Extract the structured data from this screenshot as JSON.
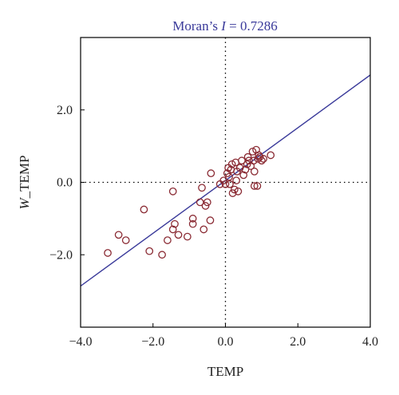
{
  "chart_data": {
    "type": "scatter",
    "title_prefix": "Moran’s ",
    "title_stat": "I",
    "title_suffix": " = 0.7286",
    "xlabel": "TEMP",
    "ylabel_prefix": "W",
    "ylabel_suffix": "_TEMP",
    "xlim": [
      -4.0,
      4.0
    ],
    "ylim": [
      -4.0,
      4.0
    ],
    "xticks": [
      -4.0,
      -2.0,
      0.0,
      2.0,
      4.0
    ],
    "xtick_labels": [
      "−4.0",
      "−2.0",
      "0.0",
      "2.0",
      "4.0"
    ],
    "yticks": [
      -2.0,
      0.0,
      2.0
    ],
    "ytick_labels": [
      "−2.0",
      "0.0",
      "2.0"
    ],
    "reference_lines": {
      "x": 0,
      "y": 0,
      "style": "dotted"
    },
    "regression_line": {
      "slope": 0.7286,
      "intercept": 0.05
    },
    "colors": {
      "points": "#8a2a33",
      "line": "#3a3a9a",
      "title": "#3a3a9a"
    },
    "points": [
      [
        -3.25,
        -1.95
      ],
      [
        -2.95,
        -1.45
      ],
      [
        -2.75,
        -1.6
      ],
      [
        -2.25,
        -0.75
      ],
      [
        -2.1,
        -1.9
      ],
      [
        -1.75,
        -2.0
      ],
      [
        -1.6,
        -1.6
      ],
      [
        -1.45,
        -0.25
      ],
      [
        -1.45,
        -1.3
      ],
      [
        -1.4,
        -1.15
      ],
      [
        -1.3,
        -1.45
      ],
      [
        -1.05,
        -1.5
      ],
      [
        -0.9,
        -1.0
      ],
      [
        -0.9,
        -1.15
      ],
      [
        -0.7,
        -0.55
      ],
      [
        -0.65,
        -0.15
      ],
      [
        -0.6,
        -1.3
      ],
      [
        -0.55,
        -0.65
      ],
      [
        -0.5,
        -0.55
      ],
      [
        -0.42,
        -1.05
      ],
      [
        -0.4,
        0.25
      ],
      [
        -0.15,
        -0.05
      ],
      [
        -0.05,
        0.05
      ],
      [
        0.0,
        -0.05
      ],
      [
        0.05,
        0.25
      ],
      [
        0.08,
        0.4
      ],
      [
        0.1,
        0.15
      ],
      [
        0.12,
        -0.05
      ],
      [
        0.15,
        0.35
      ],
      [
        0.18,
        0.5
      ],
      [
        0.2,
        -0.3
      ],
      [
        0.25,
        -0.2
      ],
      [
        0.28,
        0.55
      ],
      [
        0.3,
        0.05
      ],
      [
        0.32,
        0.3
      ],
      [
        0.35,
        -0.25
      ],
      [
        0.4,
        0.4
      ],
      [
        0.45,
        0.6
      ],
      [
        0.5,
        0.2
      ],
      [
        0.55,
        0.35
      ],
      [
        0.6,
        0.5
      ],
      [
        0.62,
        0.7
      ],
      [
        0.65,
        0.6
      ],
      [
        0.7,
        0.45
      ],
      [
        0.75,
        0.85
      ],
      [
        0.78,
        0.6
      ],
      [
        0.8,
        0.3
      ],
      [
        0.8,
        -0.1
      ],
      [
        0.85,
        0.9
      ],
      [
        0.88,
        -0.1
      ],
      [
        0.9,
        0.65
      ],
      [
        0.92,
        0.75
      ],
      [
        0.95,
        0.7
      ],
      [
        1.0,
        0.6
      ],
      [
        1.05,
        0.65
      ],
      [
        1.25,
        0.75
      ]
    ]
  }
}
